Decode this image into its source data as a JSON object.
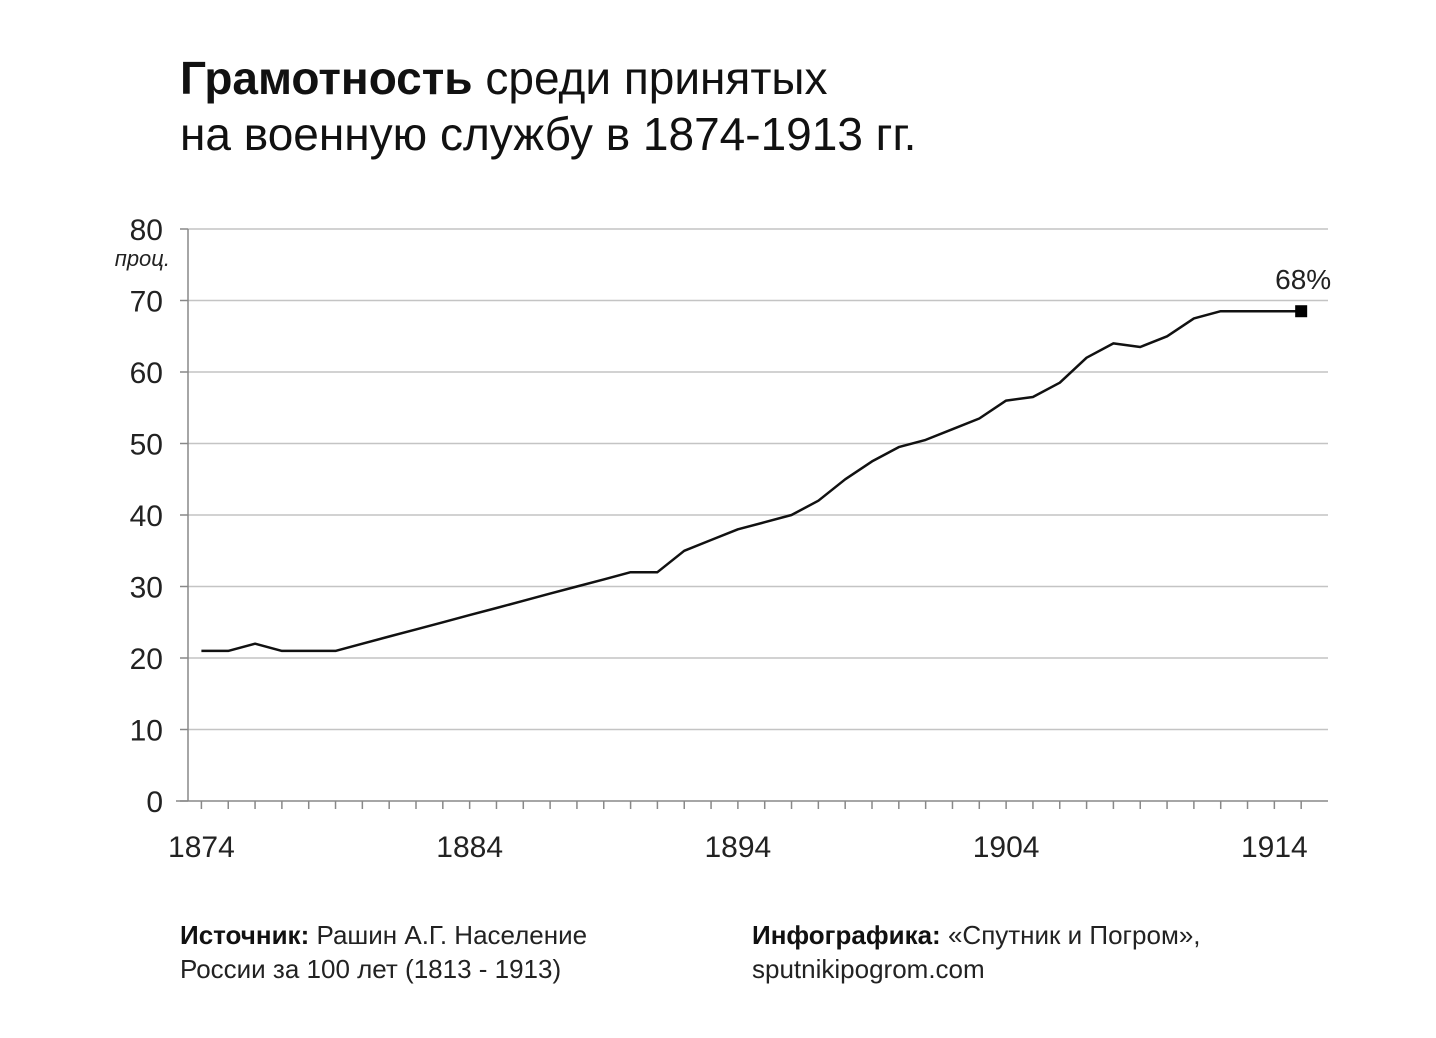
{
  "title": {
    "bold": "Грамотность",
    "rest_line1": "среди принятых",
    "line2": "на военную службу в 1874-1913 гг."
  },
  "chart_data": {
    "type": "line",
    "title": "Грамотность среди принятых на военную службу в 1874-1913 гг.",
    "ylabel": "проц.",
    "xlabel": "",
    "ylim": [
      0,
      80
    ],
    "yticks": [
      0,
      10,
      20,
      30,
      40,
      50,
      60,
      70,
      80
    ],
    "xticks": [
      1874,
      1884,
      1894,
      1904,
      1914
    ],
    "xlim": [
      1873.5,
      1916
    ],
    "grid": true,
    "series": [
      {
        "x": [
          1874,
          1875,
          1876,
          1877,
          1878,
          1879,
          1880,
          1881,
          1882,
          1883,
          1884,
          1885,
          1886,
          1887,
          1888,
          1889,
          1890,
          1891,
          1892,
          1893,
          1894,
          1895,
          1896,
          1897,
          1898,
          1899,
          1900,
          1901,
          1902,
          1903,
          1904,
          1905,
          1906,
          1907,
          1908,
          1909,
          1910,
          1911,
          1912,
          1913,
          1914,
          1915
        ],
        "values": [
          21,
          21,
          22,
          21,
          21,
          21,
          22,
          23,
          24,
          25,
          26,
          27,
          28,
          29,
          30,
          31,
          32,
          32,
          35,
          36.5,
          38,
          39,
          40,
          42,
          45,
          47.5,
          49.5,
          50.5,
          52,
          53.5,
          56,
          56.5,
          58.5,
          62,
          64,
          63.5,
          65,
          67.5,
          68.5,
          68.5,
          68.5,
          68.5
        ]
      }
    ],
    "annotation": "68%",
    "ytick_labels": [
      "0",
      "10",
      "20",
      "30",
      "40",
      "50",
      "60",
      "70",
      "80"
    ],
    "xtick_labels": [
      "1874",
      "1884",
      "1894",
      "1904",
      "1914"
    ]
  },
  "footer": {
    "source_label": "Источник:",
    "source_text_1": "Рашин А.Г. Население",
    "source_text_2": "России за 100 лет (1813 - 1913)",
    "credit_label": "Инфографика:",
    "credit_text_1": "«Спутник и Погром»,",
    "credit_text_2": "sputnikipogrom.com"
  }
}
